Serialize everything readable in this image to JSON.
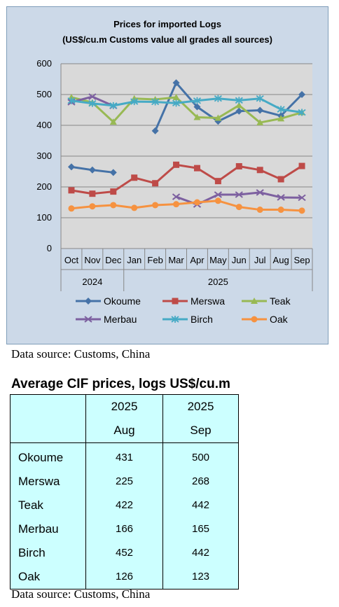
{
  "chart_data": {
    "type": "line",
    "title": "Prices for imported Logs",
    "subtitle": "(US$/cu.m Customs value all grades all sources)",
    "categories": [
      "Oct",
      "Nov",
      "Dec",
      "Jan",
      "Feb",
      "Mar",
      "Apr",
      "May",
      "Jun",
      "Jul",
      "Aug",
      "Sep"
    ],
    "year_groups": [
      {
        "label": "2024",
        "count": 3
      },
      {
        "label": "2025",
        "count": 9
      }
    ],
    "ylim": [
      0,
      600
    ],
    "yticks": [
      "0",
      "100",
      "200",
      "300",
      "400",
      "500",
      "600"
    ],
    "grid": true,
    "legend_position": "bottom",
    "series": [
      {
        "name": "Okoume",
        "color": "#4572a7",
        "marker": "diamond",
        "values": [
          265,
          255,
          247,
          null,
          382,
          538,
          460,
          413,
          446,
          449,
          431,
          500
        ]
      },
      {
        "name": "Merswa",
        "color": "#be4b48",
        "marker": "square",
        "values": [
          189,
          178,
          185,
          230,
          212,
          272,
          261,
          219,
          267,
          255,
          225,
          268
        ]
      },
      {
        "name": "Teak",
        "color": "#98b954",
        "marker": "triangle",
        "values": [
          491,
          474,
          411,
          487,
          484,
          491,
          426,
          424,
          465,
          409,
          422,
          442
        ]
      },
      {
        "name": "Merbau",
        "color": "#7d60a0",
        "marker": "x",
        "values": [
          475,
          493,
          463,
          null,
          null,
          168,
          143,
          175,
          175,
          182,
          166,
          165
        ]
      },
      {
        "name": "Birch",
        "color": "#46aac5",
        "marker": "star",
        "values": [
          480,
          471,
          464,
          477,
          476,
          472,
          480,
          487,
          481,
          487,
          452,
          442
        ]
      },
      {
        "name": "Oak",
        "color": "#f69240",
        "marker": "circle",
        "values": [
          130,
          137,
          141,
          132,
          141,
          144,
          150,
          155,
          135,
          126,
          126,
          123
        ]
      }
    ]
  },
  "data_source_top": "Data source: Customs, China",
  "table": {
    "title": "Average CIF prices, logs US$/cu.m",
    "col1_year": "2025",
    "col1_month": "Aug",
    "col2_year": "2025",
    "col2_month": "Sep",
    "rows": [
      {
        "name": "Okoume",
        "v1": "431",
        "v2": "500"
      },
      {
        "name": "Merswa",
        "v1": "225",
        "v2": "268"
      },
      {
        "name": "Teak",
        "v1": "422",
        "v2": "442"
      },
      {
        "name": "Merbau",
        "v1": "166",
        "v2": "165"
      },
      {
        "name": "Birch",
        "v1": "452",
        "v2": "442"
      },
      {
        "name": "Oak",
        "v1": "126",
        "v2": "123"
      }
    ]
  },
  "data_source_bottom": "Data source: Customs, China"
}
